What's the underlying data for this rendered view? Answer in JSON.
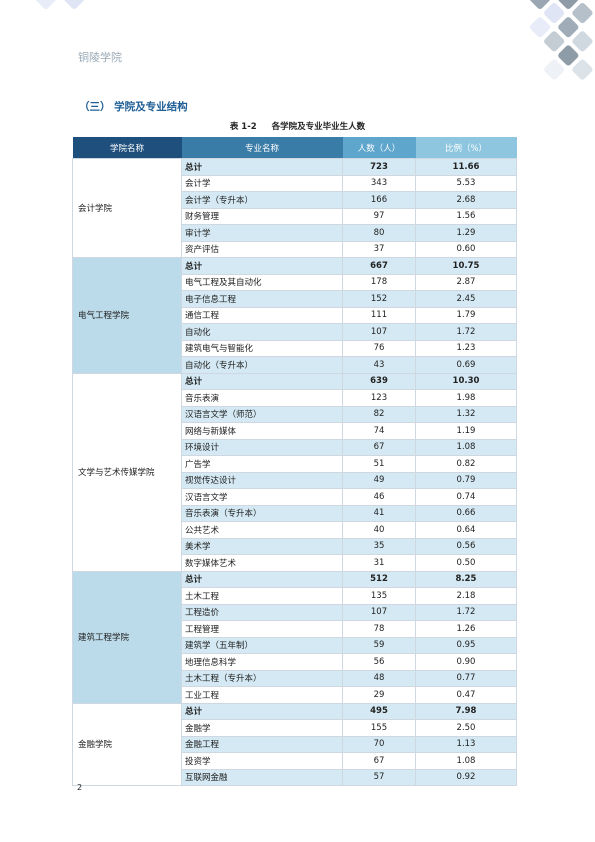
{
  "header": {
    "title": "铜陵学院"
  },
  "section_heading": "（三）    学院及专业结构",
  "table_caption": {
    "label": "表 1-2",
    "title": "各学院及专业毕业生人数"
  },
  "table": {
    "columns": [
      "学院名称",
      "专业名称",
      "人数（人）",
      "比例（%）"
    ],
    "groups": [
      {
        "college": "会计学院",
        "rows": [
          {
            "major": "总计",
            "count": "723",
            "pct": "11.66"
          },
          {
            "major": "会计学",
            "count": "343",
            "pct": "5.53"
          },
          {
            "major": "会计学（专升本）",
            "count": "166",
            "pct": "2.68"
          },
          {
            "major": "财务管理",
            "count": "97",
            "pct": "1.56"
          },
          {
            "major": "审计学",
            "count": "80",
            "pct": "1.29"
          },
          {
            "major": "资产评估",
            "count": "37",
            "pct": "0.60"
          }
        ]
      },
      {
        "college": "电气工程学院",
        "rows": [
          {
            "major": "总计",
            "count": "667",
            "pct": "10.75"
          },
          {
            "major": "电气工程及其自动化",
            "count": "178",
            "pct": "2.87"
          },
          {
            "major": "电子信息工程",
            "count": "152",
            "pct": "2.45"
          },
          {
            "major": "通信工程",
            "count": "111",
            "pct": "1.79"
          },
          {
            "major": "自动化",
            "count": "107",
            "pct": "1.72"
          },
          {
            "major": "建筑电气与智能化",
            "count": "76",
            "pct": "1.23"
          },
          {
            "major": "自动化（专升本）",
            "count": "43",
            "pct": "0.69"
          }
        ]
      },
      {
        "college": "文学与艺术传媒学院",
        "rows": [
          {
            "major": "总计",
            "count": "639",
            "pct": "10.30"
          },
          {
            "major": "音乐表演",
            "count": "123",
            "pct": "1.98"
          },
          {
            "major": "汉语言文学（师范）",
            "count": "82",
            "pct": "1.32"
          },
          {
            "major": "网络与新媒体",
            "count": "74",
            "pct": "1.19"
          },
          {
            "major": "环境设计",
            "count": "67",
            "pct": "1.08"
          },
          {
            "major": "广告学",
            "count": "51",
            "pct": "0.82"
          },
          {
            "major": "视觉传达设计",
            "count": "49",
            "pct": "0.79"
          },
          {
            "major": "汉语言文学",
            "count": "46",
            "pct": "0.74"
          },
          {
            "major": "音乐表演（专升本）",
            "count": "41",
            "pct": "0.66"
          },
          {
            "major": "公共艺术",
            "count": "40",
            "pct": "0.64"
          },
          {
            "major": "美术学",
            "count": "35",
            "pct": "0.56"
          },
          {
            "major": "数字媒体艺术",
            "count": "31",
            "pct": "0.50"
          }
        ]
      },
      {
        "college": "建筑工程学院",
        "rows": [
          {
            "major": "总计",
            "count": "512",
            "pct": "8.25"
          },
          {
            "major": "土木工程",
            "count": "135",
            "pct": "2.18"
          },
          {
            "major": "工程造价",
            "count": "107",
            "pct": "1.72"
          },
          {
            "major": "工程管理",
            "count": "78",
            "pct": "1.26"
          },
          {
            "major": "建筑学（五年制）",
            "count": "59",
            "pct": "0.95"
          },
          {
            "major": "地理信息科学",
            "count": "56",
            "pct": "0.90"
          },
          {
            "major": "土木工程（专升本）",
            "count": "48",
            "pct": "0.77"
          },
          {
            "major": "工业工程",
            "count": "29",
            "pct": "0.47"
          }
        ]
      },
      {
        "college": "金融学院",
        "rows": [
          {
            "major": "总计",
            "count": "495",
            "pct": "7.98"
          },
          {
            "major": "金融学",
            "count": "155",
            "pct": "2.50"
          },
          {
            "major": "金融工程",
            "count": "70",
            "pct": "1.13"
          },
          {
            "major": "投资学",
            "count": "67",
            "pct": "1.08"
          },
          {
            "major": "互联网金融",
            "count": "57",
            "pct": "0.92"
          }
        ]
      }
    ]
  },
  "page_number": "2",
  "colors": {
    "header_dark": "#1f4f7c",
    "shade": "#d4e9f3",
    "heading": "#1f5f96"
  }
}
